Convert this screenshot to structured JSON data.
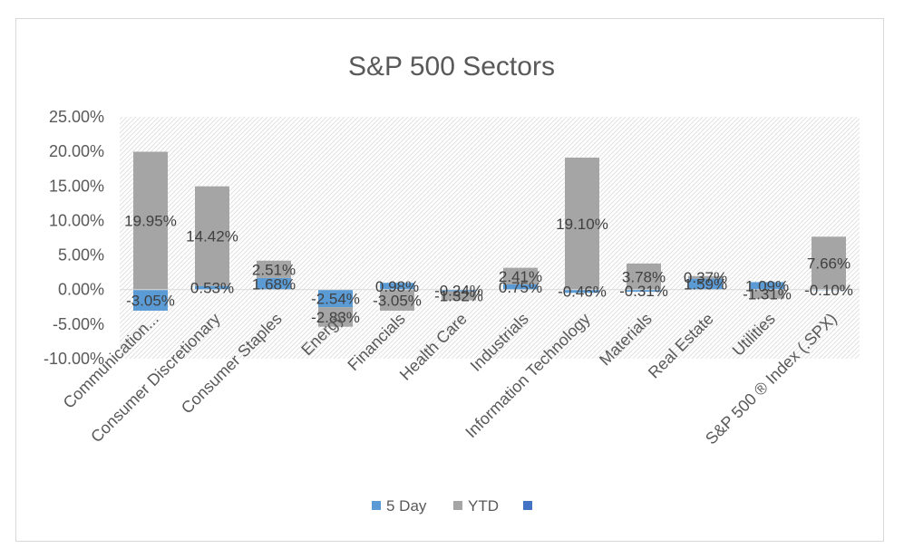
{
  "chart_data": {
    "type": "bar",
    "title": "S&P 500 Sectors",
    "xlabel": "",
    "ylabel": "",
    "ylim": [
      -0.1,
      0.25
    ],
    "yticks": [
      "25.00%",
      "20.00%",
      "15.00%",
      "10.00%",
      "5.00%",
      "0.00%",
      "-5.00%",
      "-10.00%"
    ],
    "ytick_values": [
      0.25,
      0.2,
      0.15,
      0.1,
      0.05,
      0.0,
      -0.05,
      -0.1
    ],
    "categories": [
      "Communication...",
      "Consumer Discretionary",
      "Consumer Staples",
      "Energy",
      "Financials",
      "Health Care",
      "Industrials",
      "Information Technology",
      "Materials",
      "Real Estate",
      "Utilities",
      "S&P 500 ® Index (.SPX)"
    ],
    "series": [
      {
        "name": "5 Day",
        "color": "#5b9bd5",
        "values": [
          -0.0305,
          0.0053,
          0.0168,
          -0.0254,
          0.0098,
          -0.0024,
          0.0075,
          -0.0046,
          -0.0031,
          0.0159,
          0.0109,
          -0.001
        ],
        "labels": [
          "-3.05%",
          "0.53%",
          "1.68%",
          "-2.54%",
          "0.98%",
          "-0.24%",
          "0.75%",
          "-0.46%",
          "-0.31%",
          "1.59%",
          "1.09%",
          "-0.10%"
        ]
      },
      {
        "name": "YTD",
        "color": "#a5a5a5",
        "values": [
          0.1995,
          0.1442,
          0.0251,
          -0.0283,
          -0.0305,
          -0.0132,
          0.0241,
          0.191,
          0.0378,
          0.0037,
          -0.0131,
          0.0766
        ],
        "labels": [
          "19.95%",
          "14.42%",
          "2.51%",
          "-2.83%",
          "-3.05%",
          "-1.32%",
          "2.41%",
          "19.10%",
          "3.78%",
          "0.37%",
          "-1.31%",
          "7.66%"
        ]
      }
    ],
    "legend": {
      "position": "bottom",
      "entries": [
        "5 Day",
        "YTD",
        ""
      ],
      "colors": [
        "#5b9bd5",
        "#a5a5a5",
        "#4472c4"
      ]
    },
    "grid": false,
    "plot_background": "hatched"
  }
}
